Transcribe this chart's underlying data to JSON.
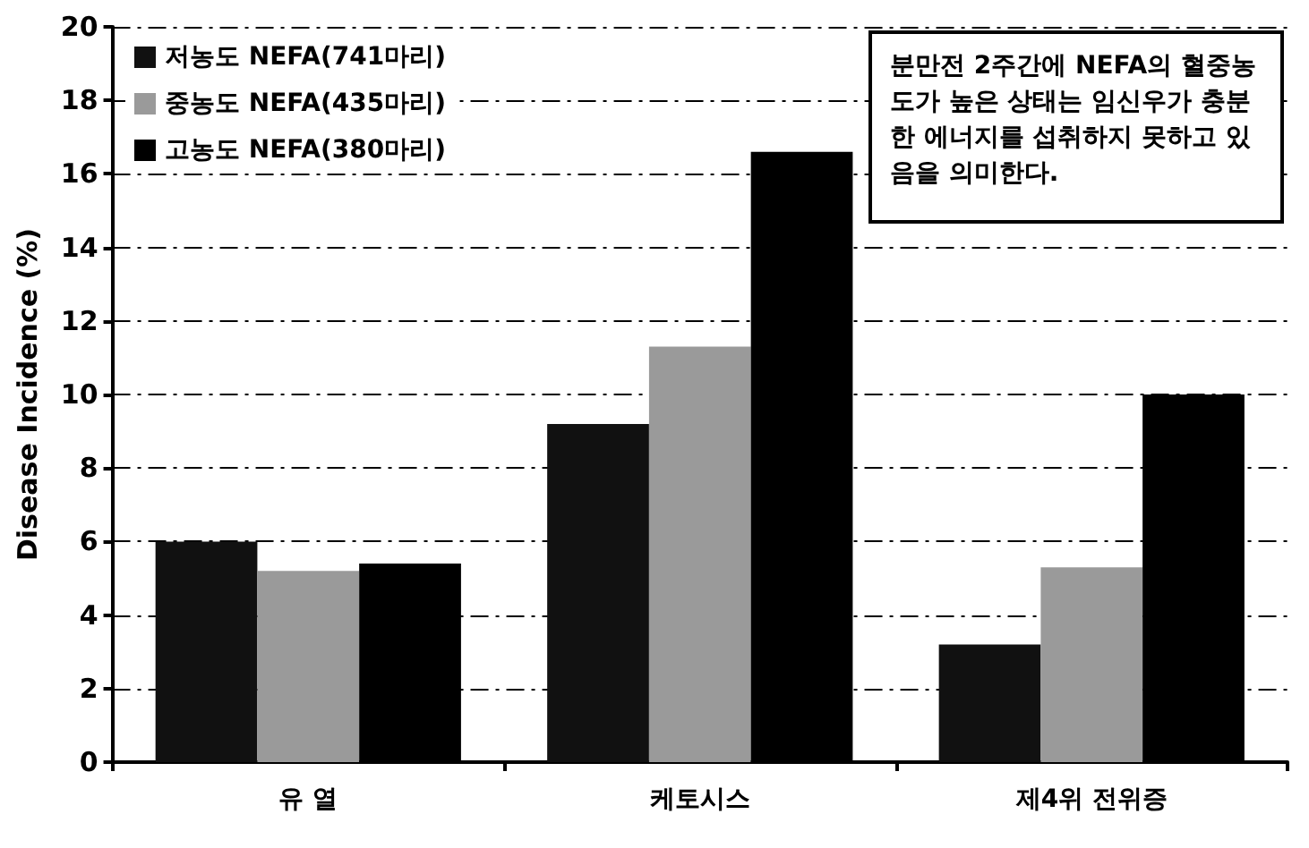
{
  "chart_data": {
    "type": "bar",
    "ylabel": "Disease Incidence (%)",
    "categories": [
      "유 열",
      "케토시스",
      "제4위 전위증"
    ],
    "series": [
      {
        "name": "저농도 NEFA(741마리)",
        "color": "#111111",
        "values": [
          6.0,
          9.2,
          3.2
        ]
      },
      {
        "name": "중농도 NEFA(435마리)",
        "color": "#9a9a9a",
        "values": [
          5.2,
          11.3,
          5.3
        ]
      },
      {
        "name": "고농도 NEFA(380마리)",
        "color": "#000000",
        "values": [
          5.4,
          16.6,
          10.0
        ]
      }
    ],
    "ylim": [
      0,
      20
    ],
    "yticks": [
      0,
      2,
      4,
      6,
      8,
      10,
      12,
      14,
      16,
      18,
      20
    ],
    "grid": "y",
    "legend": "top left",
    "annotations": [
      "분만전 2주간에 NEFA의 혈중농도가 높은 상태는 임신우가 충분한 에너지를 섭취하지 못하고 있음을 의미한다."
    ]
  }
}
